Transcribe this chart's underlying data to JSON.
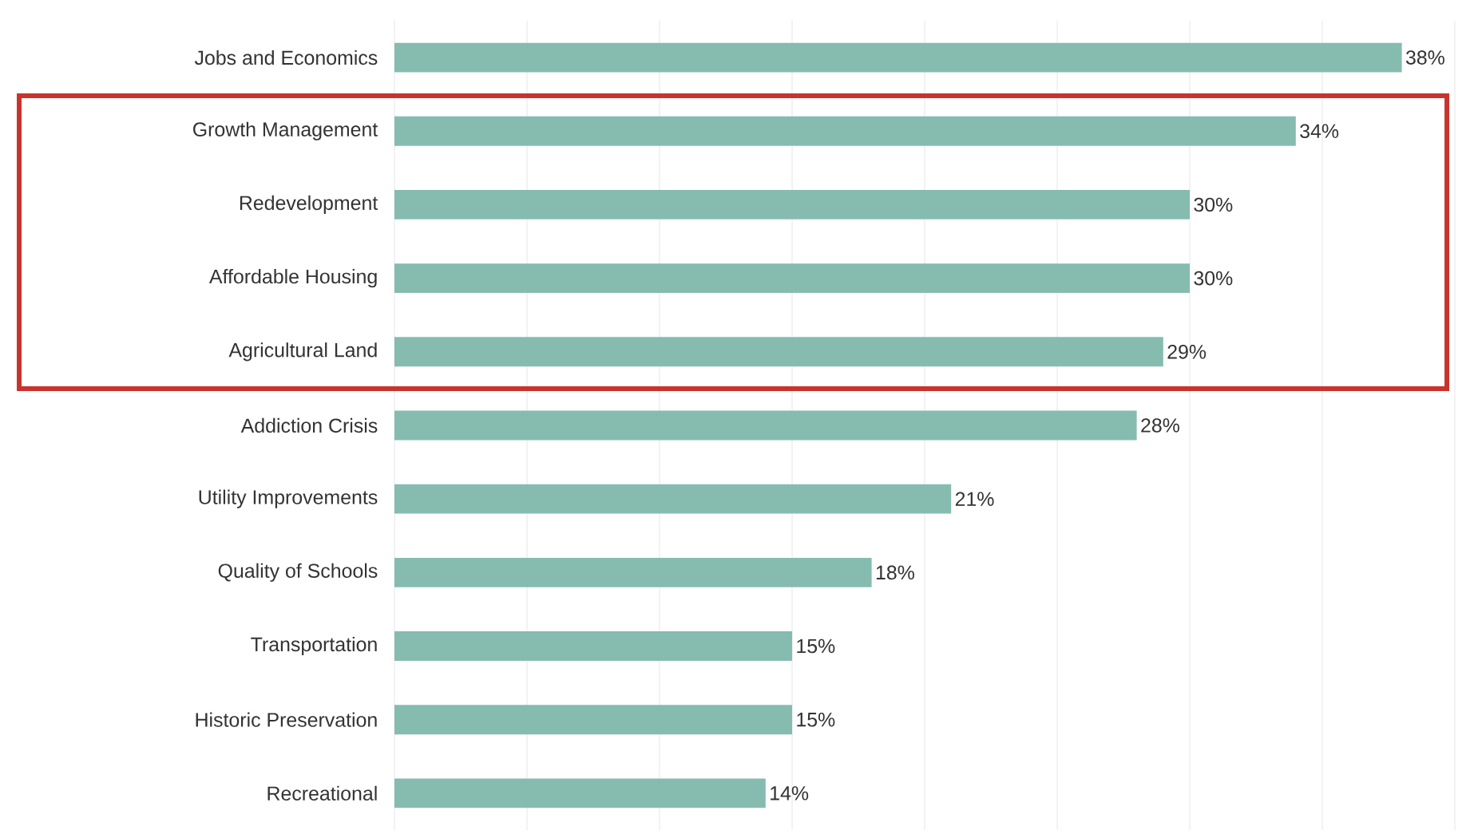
{
  "chart_data": {
    "type": "bar",
    "orientation": "horizontal",
    "categories": [
      "Jobs and Economics",
      "Growth Management",
      "Redevelopment",
      "Affordable Housing",
      "Agricultural Land",
      "Addiction Crisis",
      "Utility Improvements",
      "Quality of Schools",
      "Transportation",
      "Historic Preservation",
      "Recreational"
    ],
    "values": [
      38,
      34,
      30,
      30,
      29,
      28,
      21,
      18,
      15,
      15,
      14
    ],
    "value_labels": [
      "38%",
      "34%",
      "30%",
      "30%",
      "29%",
      "28%",
      "21%",
      "18%",
      "15%",
      "15%",
      "14%"
    ],
    "color": "#86bcb0",
    "xlim": [
      0,
      40
    ],
    "xticks": [
      {
        "value": 0,
        "label": null
      },
      {
        "value": 5,
        "label": null
      },
      {
        "value": 10,
        "label": null
      },
      {
        "value": 15,
        "label": null
      },
      {
        "value": 20,
        "label": null
      },
      {
        "value": 25,
        "label": null
      },
      {
        "value": 30,
        "label": null
      },
      {
        "value": 35,
        "label": null
      },
      {
        "value": 40,
        "label": null
      }
    ],
    "grid": "x",
    "tick_labels": "y"
  }
}
